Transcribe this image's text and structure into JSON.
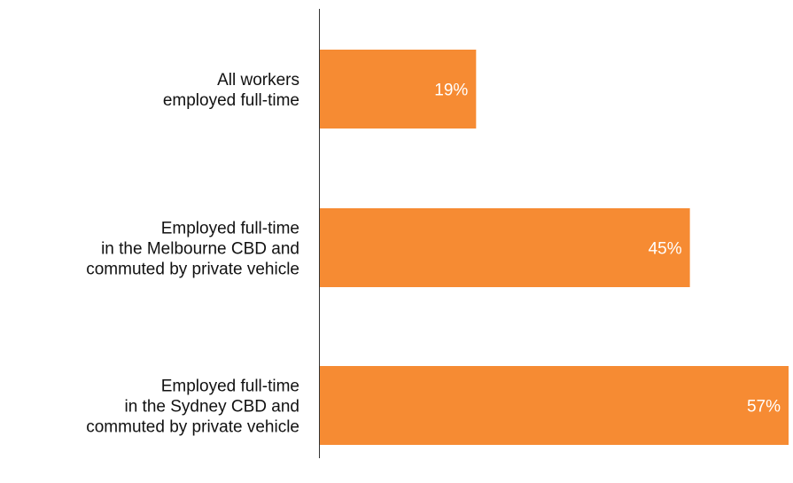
{
  "chart_data": {
    "type": "bar",
    "orientation": "horizontal",
    "categories": [
      [
        "All workers",
        "employed full-time"
      ],
      [
        "Employed full-time",
        "in the Melbourne CBD and",
        "commuted by private vehicle"
      ],
      [
        "Employed full-time",
        "in the Sydney CBD and",
        "commuted by private vehicle"
      ]
    ],
    "values": [
      19,
      45,
      57
    ],
    "data_labels": [
      "19%",
      "45%",
      "57%"
    ],
    "xlim": [
      0,
      57
    ],
    "grid": false,
    "legend": "none",
    "colors": {
      "bar": "#F68B33",
      "axis": "#333333",
      "category_text": "#111111",
      "value_text": "#ffffff"
    }
  }
}
